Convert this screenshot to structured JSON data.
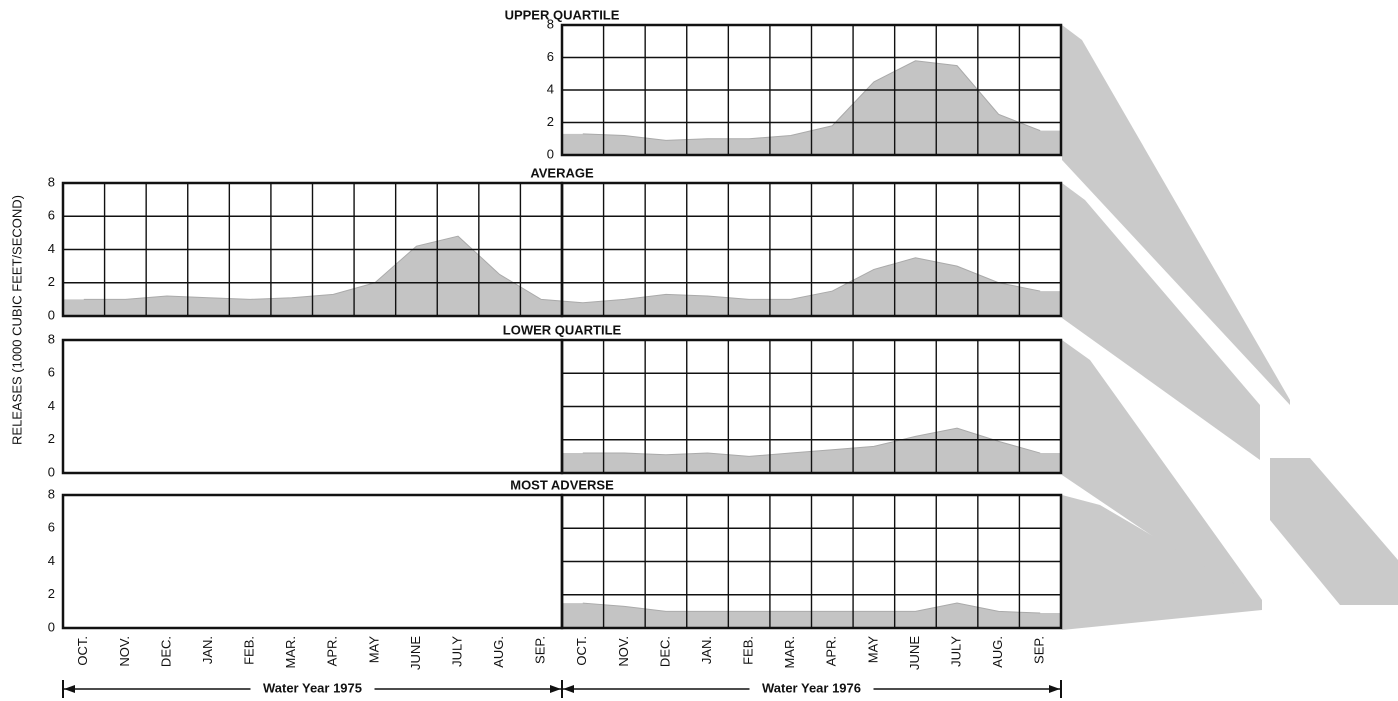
{
  "axis": {
    "y_label": "RELEASES (1000 CUBIC FEET/SECOND)",
    "categories": [
      "OCT.",
      "NOV.",
      "DEC.",
      "JAN.",
      "FEB.",
      "MAR.",
      "APR.",
      "MAY",
      "JUNE",
      "JULY",
      "AUG.",
      "SEP.",
      "OCT.",
      "NOV.",
      "DEC.",
      "JAN.",
      "FEB.",
      "MAR.",
      "APR.",
      "MAY",
      "JUNE",
      "JULY",
      "AUG.",
      "SEP."
    ],
    "periods": [
      "Water Year 1975",
      "Water Year 1976"
    ]
  },
  "chart_data": [
    {
      "type": "area",
      "title": "UPPER QUARTILE",
      "color": "#c4c4c4",
      "show_empty_year": false,
      "grid": true,
      "values": [
        null,
        null,
        null,
        null,
        null,
        null,
        null,
        null,
        null,
        null,
        null,
        null,
        1.3,
        1.2,
        0.9,
        1.0,
        1.0,
        1.2,
        1.8,
        4.5,
        5.8,
        5.5,
        2.5,
        1.5
      ],
      "ylim": [
        0,
        8
      ],
      "yticks": [
        0,
        2,
        4,
        6,
        8
      ]
    },
    {
      "type": "area",
      "title": "AVERAGE",
      "color": "#c4c4c4",
      "show_empty_year": true,
      "grid": true,
      "values": [
        1.0,
        1.0,
        1.2,
        1.1,
        1.0,
        1.1,
        1.3,
        2.0,
        4.2,
        4.8,
        2.5,
        1.0,
        0.8,
        1.0,
        1.3,
        1.2,
        1.0,
        1.0,
        1.5,
        2.8,
        3.5,
        3.0,
        2.0,
        1.5
      ],
      "ylim": [
        0,
        8
      ],
      "yticks": [
        0,
        2,
        4,
        6,
        8
      ]
    },
    {
      "type": "area",
      "title": "LOWER QUARTILE",
      "color": "#c4c4c4",
      "show_empty_year": true,
      "grid": true,
      "values": [
        null,
        null,
        null,
        null,
        null,
        null,
        null,
        null,
        null,
        null,
        null,
        null,
        1.2,
        1.2,
        1.1,
        1.2,
        1.0,
        1.2,
        1.4,
        1.6,
        2.2,
        2.7,
        1.9,
        1.2
      ],
      "ylim": [
        0,
        8
      ],
      "yticks": [
        0,
        2,
        4,
        6,
        8
      ]
    },
    {
      "type": "area",
      "title": "MOST ADVERSE",
      "color": "#c4c4c4",
      "show_empty_year": true,
      "grid": true,
      "values": [
        null,
        null,
        null,
        null,
        null,
        null,
        null,
        null,
        null,
        null,
        null,
        null,
        1.5,
        1.3,
        1.0,
        1.0,
        1.0,
        1.0,
        1.0,
        1.0,
        1.0,
        1.5,
        1.0,
        0.9
      ],
      "ylim": [
        0,
        8
      ],
      "yticks": [
        0,
        2,
        4,
        6,
        8
      ]
    }
  ]
}
